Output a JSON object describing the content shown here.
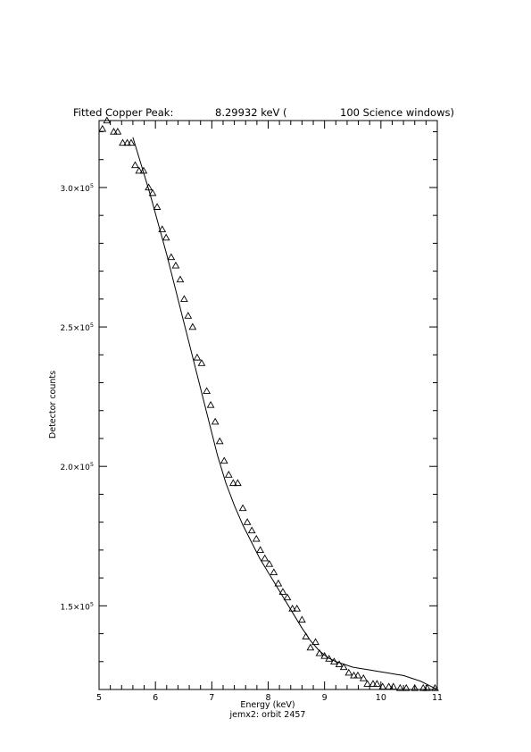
{
  "title": {
    "prefix": "Fitted Copper Peak:",
    "value": "8.29932 keV (",
    "suffix": "100 Science windows)"
  },
  "footer": "jemx2: orbit 2457",
  "chart_data": {
    "type": "scatter",
    "xlabel": "Energy (keV)",
    "ylabel": "Detector counts",
    "xlim": [
      5,
      11
    ],
    "ylim": [
      120000,
      324000
    ],
    "x_ticks": [
      5,
      6,
      7,
      8,
      9,
      10,
      11
    ],
    "x_tick_labels": [
      "5",
      "6",
      "7",
      "8",
      "9",
      "10",
      "11"
    ],
    "y_ticks": [
      150000,
      200000,
      250000,
      300000
    ],
    "y_tick_labels": [
      {
        "mantissa": "1.5×10",
        "exp": "5"
      },
      {
        "mantissa": "2.0×10",
        "exp": "5"
      },
      {
        "mantissa": "2.5×10",
        "exp": "5"
      },
      {
        "mantissa": "3.0×10",
        "exp": "5"
      }
    ],
    "grid": false,
    "series": [
      {
        "kind": "points",
        "marker": "triangle",
        "x": [
          5.06,
          5.14,
          5.26,
          5.33,
          5.42,
          5.5,
          5.57,
          5.64,
          5.71,
          5.79,
          5.88,
          5.95,
          6.03,
          6.12,
          6.19,
          6.28,
          6.36,
          6.44,
          6.51,
          6.58,
          6.66,
          6.74,
          6.82,
          6.91,
          6.98,
          7.06,
          7.14,
          7.22,
          7.3,
          7.38,
          7.46,
          7.55,
          7.63,
          7.71,
          7.79,
          7.86,
          7.94,
          8.02,
          8.1,
          8.18,
          8.26,
          8.34,
          8.43,
          8.51,
          8.6,
          8.67,
          8.75,
          8.84,
          8.91,
          9.0,
          9.08,
          9.17,
          9.26,
          9.34,
          9.43,
          9.52,
          9.59,
          9.69,
          9.76,
          9.86,
          9.93,
          10.03,
          10.14,
          10.22,
          10.34,
          10.45,
          10.6,
          10.75,
          10.82,
          10.96
        ],
        "y": [
          321000,
          324000,
          320000,
          320000,
          316000,
          316000,
          316000,
          308000,
          306000,
          306000,
          300000,
          298000,
          293000,
          285000,
          282000,
          275000,
          272000,
          267000,
          260000,
          254000,
          250000,
          239000,
          237000,
          227000,
          222000,
          216000,
          209000,
          202000,
          197000,
          194000,
          194000,
          185000,
          180000,
          177000,
          174000,
          170000,
          167000,
          165000,
          162000,
          158000,
          155000,
          153000,
          149000,
          149000,
          145000,
          139000,
          135000,
          137000,
          133000,
          132000,
          131000,
          130000,
          129000,
          128000,
          126000,
          125000,
          125000,
          124000,
          122000,
          122000,
          122000,
          121000,
          121000,
          121000,
          120500,
          120500,
          120500,
          120500,
          120500,
          120500
        ]
      },
      {
        "kind": "line",
        "x": [
          5.6,
          5.75,
          5.9,
          6.05,
          6.2,
          6.35,
          6.5,
          6.65,
          6.8,
          6.95,
          7.1,
          7.25,
          7.4,
          7.55,
          7.7,
          7.85,
          8.0,
          8.15,
          8.3,
          8.45,
          8.6,
          8.75,
          8.9,
          9.05,
          9.2,
          9.35,
          9.5,
          9.65,
          9.8,
          9.95,
          10.1,
          10.25,
          10.4,
          10.55,
          10.7,
          10.85,
          11.0
        ],
        "y": [
          318000,
          308000,
          298000,
          287000,
          276000,
          264000,
          252000,
          240000,
          228000,
          216000,
          204000,
          194000,
          186000,
          179000,
          173000,
          167000,
          162000,
          157000,
          152000,
          147000,
          142000,
          137500,
          134000,
          131500,
          130000,
          129000,
          128000,
          127500,
          127000,
          126500,
          126000,
          125500,
          125000,
          124000,
          123000,
          121500,
          120000
        ]
      }
    ]
  }
}
